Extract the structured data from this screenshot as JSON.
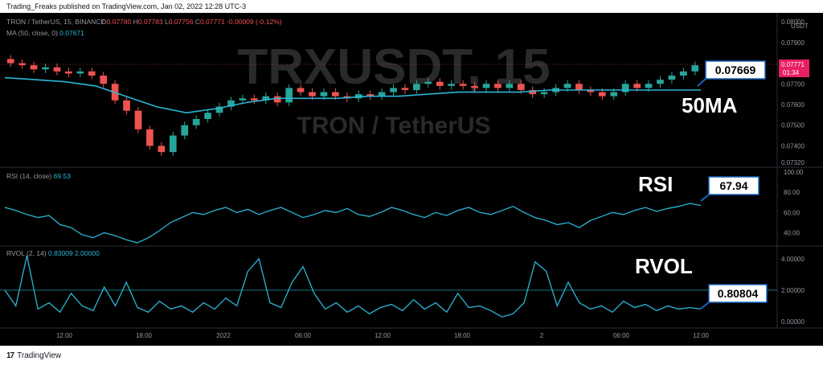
{
  "header": {
    "publish_line": "Trading_Freaks published on TradingView.com, Jan 02, 2022 12:28 UTC-3"
  },
  "footer": {
    "brand": "TradingView",
    "logo_text": "17"
  },
  "colors": {
    "background": "#000000",
    "candle_up": "#26a69a",
    "candle_down": "#ef5350",
    "ma_line": "#2bb5d4",
    "rsi_line": "#2bb5d4",
    "rvol_line": "#2bb5d4",
    "label_border": "#1565c0",
    "price_tag": "#e91e63",
    "grid": "#1a1a1a",
    "axis_text": "#9598a1"
  },
  "chart_data": [
    {
      "type": "candlestick",
      "title": "TRON / TetherUS, 15, BINANCE",
      "watermark_symbol": "TRXUSDT, 15",
      "watermark_name": "TRON / TetherUS",
      "ohlc_text": {
        "o_label": "O",
        "o": "0.07780",
        "h_label": "H",
        "h": "0.07783",
        "l_label": "L",
        "l": "0.07756",
        "c_label": "C",
        "c": "0.07771",
        "change": "-0.00009 (-0.12%)"
      },
      "ma_legend": "MA (50, close, 0)",
      "ma_value": "0.07671",
      "quote_unit": "USDT",
      "last_price_tag": "0.07771",
      "countdown": "01:34",
      "annotation_value": "0.07669",
      "annotation_label": "50MA",
      "y_ticks": [
        "0.08000",
        "0.07900",
        "0.07800",
        "0.07700",
        "0.07600",
        "0.07500",
        "0.07400",
        "0.07320"
      ],
      "ylim": [
        0.0732,
        0.0802
      ],
      "x_ticks": [
        "12:00",
        "18:00",
        "2022",
        "06:00",
        "12:00",
        "18:00",
        "2",
        "06:00",
        "12:00"
      ],
      "close_series": [
        0.078,
        0.0779,
        0.0777,
        0.0778,
        0.0776,
        0.0775,
        0.0776,
        0.0774,
        0.077,
        0.0762,
        0.0757,
        0.0748,
        0.074,
        0.0737,
        0.0745,
        0.075,
        0.0753,
        0.0756,
        0.0759,
        0.0762,
        0.0763,
        0.0762,
        0.0764,
        0.0761,
        0.0768,
        0.0766,
        0.0764,
        0.0766,
        0.0764,
        0.0763,
        0.0765,
        0.0764,
        0.0766,
        0.0768,
        0.0767,
        0.077,
        0.0771,
        0.0769,
        0.077,
        0.0769,
        0.0768,
        0.077,
        0.0768,
        0.077,
        0.0767,
        0.0765,
        0.0766,
        0.0768,
        0.077,
        0.0767,
        0.0766,
        0.0764,
        0.0766,
        0.077,
        0.0768,
        0.077,
        0.0772,
        0.0774,
        0.0776,
        0.0779
      ],
      "ma_series": [
        0.0773,
        0.0772,
        0.0771,
        0.0769,
        0.0764,
        0.0759,
        0.0756,
        0.0758,
        0.0761,
        0.0763,
        0.0763,
        0.0763,
        0.0764,
        0.0764,
        0.0765,
        0.0766,
        0.0766,
        0.0766,
        0.0767,
        0.0767,
        0.0767,
        0.0767,
        0.0767,
        0.0767
      ]
    },
    {
      "type": "line",
      "title": "RSI (14, close)",
      "value": "69.53",
      "annotation_value": "67.94",
      "annotation_label": "RSI",
      "y_ticks": [
        "100.00",
        "80.00",
        "60.00",
        "40.00"
      ],
      "ylim": [
        30,
        100
      ],
      "values": [
        65,
        62,
        58,
        55,
        57,
        48,
        45,
        38,
        35,
        40,
        37,
        33,
        30,
        35,
        42,
        50,
        55,
        60,
        58,
        62,
        65,
        60,
        63,
        58,
        62,
        65,
        60,
        55,
        58,
        62,
        60,
        64,
        58,
        56,
        60,
        65,
        62,
        58,
        55,
        60,
        57,
        62,
        65,
        60,
        58,
        62,
        66,
        60,
        55,
        52,
        48,
        50,
        45,
        52,
        56,
        60,
        58,
        62,
        65,
        61,
        64,
        66,
        69,
        67
      ]
    },
    {
      "type": "line",
      "title": "RVOL (2, 14)",
      "value1": "0.83009",
      "value2": "2.00000",
      "annotation_value": "0.80804",
      "annotation_label": "RVOL",
      "y_ticks": [
        "4.00000",
        "2.00000",
        "0.00000"
      ],
      "ylim": [
        -0.2,
        4.5
      ],
      "reference_line": 2.0,
      "values": [
        2.0,
        1.0,
        4.2,
        0.8,
        1.2,
        0.6,
        1.8,
        1.0,
        0.7,
        2.2,
        1.0,
        2.5,
        0.9,
        0.6,
        1.3,
        0.8,
        1.0,
        0.6,
        1.2,
        0.8,
        1.5,
        1.0,
        3.2,
        4.0,
        1.2,
        0.9,
        2.5,
        3.5,
        1.8,
        0.8,
        1.2,
        0.6,
        1.0,
        0.5,
        0.9,
        1.1,
        0.7,
        1.4,
        0.8,
        1.2,
        0.6,
        1.8,
        0.9,
        1.0,
        0.7,
        0.3,
        0.5,
        1.2,
        3.8,
        3.2,
        1.0,
        2.5,
        1.2,
        0.8,
        1.0,
        0.6,
        1.3,
        0.9,
        1.1,
        0.7,
        1.0,
        0.8,
        0.9,
        0.8
      ]
    }
  ]
}
